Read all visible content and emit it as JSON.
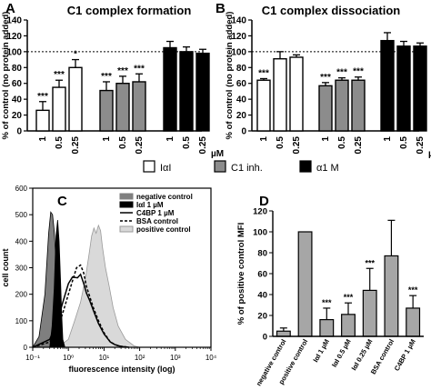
{
  "panels": {
    "A": {
      "letter": "A",
      "title": "C1 complex formation"
    },
    "B": {
      "letter": "B",
      "title": "C1 complex dissociation"
    },
    "C": {
      "letter": "C"
    },
    "D": {
      "letter": "D"
    }
  },
  "legend_ab": {
    "unit": "µM",
    "items": [
      {
        "label": "IαI",
        "color": "#ffffff"
      },
      {
        "label": "C1 inh.",
        "color": "#8c8c8c"
      },
      {
        "label": "α1 M",
        "color": "#000000"
      }
    ]
  },
  "chart_data": [
    {
      "id": "A",
      "type": "bar",
      "title": "C1 complex formation",
      "ylabel": "% of control (no protein added)",
      "xunit": "µM",
      "ylim": [
        0,
        140
      ],
      "yticks": [
        0,
        20,
        40,
        60,
        80,
        100,
        120,
        140
      ],
      "reference_line": 100,
      "groups": [
        {
          "name": "IαI",
          "color": "#ffffff",
          "categories": [
            "1",
            "0.5",
            "0.25"
          ],
          "values": [
            26,
            55,
            80
          ],
          "errors": [
            11,
            9,
            10
          ],
          "significance": [
            "***",
            "***",
            "*"
          ]
        },
        {
          "name": "C1 inh.",
          "color": "#8c8c8c",
          "categories": [
            "1",
            "0.5",
            "0.25"
          ],
          "values": [
            51,
            60,
            62
          ],
          "errors": [
            11,
            9,
            10
          ],
          "significance": [
            "***",
            "***",
            "***"
          ]
        },
        {
          "name": "α1 M",
          "color": "#000000",
          "categories": [
            "1",
            "0.5",
            "0.25"
          ],
          "values": [
            105,
            100,
            98
          ],
          "errors": [
            8,
            6,
            5
          ],
          "significance": [
            "",
            "",
            ""
          ]
        }
      ]
    },
    {
      "id": "B",
      "type": "bar",
      "title": "C1 complex dissociation",
      "ylabel": "% of control (no protein added)",
      "xunit": "µM",
      "ylim": [
        0,
        140
      ],
      "yticks": [
        0,
        20,
        40,
        60,
        80,
        100,
        120,
        140
      ],
      "reference_line": 100,
      "groups": [
        {
          "name": "IαI",
          "color": "#ffffff",
          "categories": [
            "1",
            "0.5",
            "0.25"
          ],
          "values": [
            64,
            91,
            93
          ],
          "errors": [
            2,
            9,
            3
          ],
          "significance": [
            "***",
            "",
            ""
          ]
        },
        {
          "name": "C1 inh.",
          "color": "#8c8c8c",
          "categories": [
            "1",
            "0.5",
            "0.25"
          ],
          "values": [
            57,
            64,
            64
          ],
          "errors": [
            4,
            3,
            4
          ],
          "significance": [
            "***",
            "***",
            "***"
          ]
        },
        {
          "name": "α1 M",
          "color": "#000000",
          "categories": [
            "1",
            "0.5",
            "0.25"
          ],
          "values": [
            114,
            107,
            107
          ],
          "errors": [
            10,
            6,
            4
          ],
          "significance": [
            "",
            "",
            ""
          ]
        }
      ]
    },
    {
      "id": "C",
      "type": "line",
      "xlabel": "fluorescence intensity (log)",
      "ylabel": "cell count",
      "xscale": "log",
      "xlim": [
        0.1,
        10000
      ],
      "xticks": [
        0.1,
        1,
        10,
        100,
        1000,
        10000
      ],
      "xtick_labels": [
        "10⁻¹",
        "10⁰",
        "10¹",
        "10²",
        "10³",
        "10⁴"
      ],
      "ylim": [
        0,
        600
      ],
      "yticks": [
        0,
        100,
        200,
        300,
        400,
        500,
        600
      ],
      "legend_position": "top-right",
      "series": [
        {
          "name": "negative control",
          "style": "fill",
          "color": "#7f7f7f",
          "x": [
            0.1,
            0.15,
            0.22,
            0.28,
            0.32,
            0.36,
            0.4,
            0.44,
            0.5,
            0.55,
            0.6,
            0.7
          ],
          "y": [
            0,
            40,
            200,
            430,
            510,
            500,
            440,
            350,
            170,
            60,
            10,
            0
          ]
        },
        {
          "name": "IαI 1 µM",
          "style": "fill",
          "color": "#000000",
          "x": [
            0.3,
            0.35,
            0.4,
            0.45,
            0.5,
            0.55,
            0.6,
            0.65,
            0.7,
            0.8
          ],
          "y": [
            0,
            80,
            220,
            420,
            480,
            400,
            260,
            120,
            30,
            0
          ]
        },
        {
          "name": "C4BP 1 µM",
          "style": "solid",
          "color": "#000000",
          "x": [
            0.1,
            0.3,
            0.5,
            0.7,
            1.0,
            1.3,
            1.8,
            2.2,
            2.7,
            3.2,
            4,
            5,
            7,
            10,
            15,
            20,
            30,
            50
          ],
          "y": [
            0,
            30,
            100,
            170,
            240,
            265,
            262,
            275,
            240,
            205,
            175,
            140,
            90,
            50,
            20,
            10,
            3,
            0
          ]
        },
        {
          "name": "BSA control",
          "style": "dashed",
          "color": "#000000",
          "x": [
            0.1,
            0.3,
            0.5,
            0.7,
            1.0,
            1.3,
            1.7,
            2.2,
            2.7,
            3.2,
            4,
            5,
            7,
            10,
            15,
            25,
            50
          ],
          "y": [
            0,
            20,
            70,
            130,
            200,
            250,
            300,
            310,
            280,
            230,
            190,
            150,
            100,
            55,
            20,
            5,
            0
          ]
        },
        {
          "name": "positive control",
          "style": "fill",
          "color": "#d9d9d9",
          "x": [
            0.5,
            1.0,
            1.5,
            2.2,
            3.0,
            3.8,
            4.5,
            5.2,
            6,
            7,
            8,
            9,
            11,
            14,
            18,
            25,
            40,
            70,
            100
          ],
          "y": [
            0,
            30,
            100,
            170,
            260,
            350,
            420,
            450,
            430,
            460,
            440,
            380,
            300,
            230,
            150,
            80,
            30,
            5,
            0
          ]
        }
      ]
    },
    {
      "id": "D",
      "type": "bar",
      "ylabel": "% of positive control MFI",
      "ylim": [
        0,
        120
      ],
      "yticks": [
        0,
        20,
        40,
        60,
        80,
        100,
        120
      ],
      "color": "#a6a6a6",
      "categories": [
        "negative control",
        "positive control",
        "IαI 1 µM",
        "IαI 0.5 µM",
        "IαI 0.25 µM",
        "BSA control",
        "C4BP 1 µM"
      ],
      "values": [
        5,
        100,
        16,
        21,
        44,
        77,
        27
      ],
      "errors": [
        3,
        0,
        11,
        11,
        21,
        34,
        12
      ],
      "significance": [
        "",
        "",
        "***",
        "***",
        "***",
        "",
        "***"
      ]
    }
  ]
}
